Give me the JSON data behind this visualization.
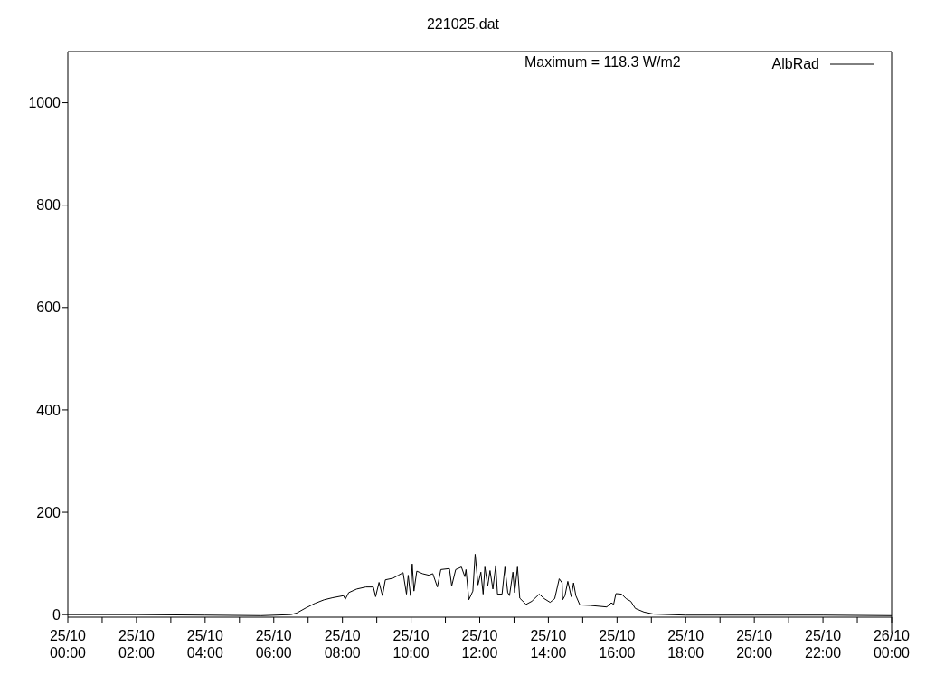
{
  "chart_data": {
    "type": "line",
    "title": "221025.dat",
    "annotations": [
      "Maximum = 118.3 W/m2"
    ],
    "x": [
      "--10-25T00:00",
      "--10-25T02:00",
      "--10-25T04:00",
      "--10-25T05:38",
      "--10-25T06:30",
      "--10-25T06:40",
      "--10-25T06:56",
      "--10-25T07:12",
      "--10-25T07:28",
      "--10-25T07:43",
      "--10-25T08:02",
      "--10-25T08:05",
      "--10-25T08:11",
      "--10-25T08:25",
      "--10-25T08:41",
      "--10-25T08:54",
      "--10-25T08:58",
      "--10-25T09:04",
      "--10-25T09:10",
      "--10-25T09:15",
      "--10-25T09:28",
      "--10-25T09:38",
      "--10-25T09:46",
      "--10-25T09:52",
      "--10-25T09:55",
      "--10-25T09:59",
      "--10-25T10:02",
      "--10-25T10:05",
      "--10-25T10:10",
      "--10-25T10:20",
      "--10-25T10:31",
      "--10-25T10:38",
      "--10-25T10:46",
      "--10-25T10:52",
      "--10-25T11:07",
      "--10-25T11:11",
      "--10-25T11:18",
      "--10-25T11:28",
      "--10-25T11:34",
      "--10-25T11:36",
      "--10-25T11:41",
      "--10-25T11:48",
      "--10-25T11:52",
      "--10-25T11:57",
      "--10-25T12:02",
      "--10-25T12:06",
      "--10-25T12:09",
      "--10-25T12:14",
      "--10-25T12:18",
      "--10-25T12:23",
      "--10-25T12:28",
      "--10-25T12:31",
      "--10-25T12:39",
      "--10-25T12:44",
      "--10-25T12:49",
      "--10-25T12:52",
      "--10-25T12:58",
      "--10-25T13:01",
      "--10-25T13:06",
      "--10-25T13:10",
      "--10-25T13:21",
      "--10-25T13:31",
      "--10-25T13:44",
      "--10-25T13:53",
      "--10-25T14:03",
      "--10-25T14:11",
      "--10-25T14:19",
      "--10-25T14:24",
      "--10-25T14:25",
      "--10-25T14:29",
      "--10-25T14:34",
      "--10-25T14:40",
      "--10-25T14:44",
      "--10-25T14:48",
      "--10-25T14:55",
      "--10-25T15:13",
      "--10-25T15:42",
      "--10-25T15:50",
      "--10-25T15:54",
      "--10-25T15:58",
      "--10-25T16:08",
      "--10-25T16:16",
      "--10-25T16:24",
      "--10-25T16:32",
      "--10-25T16:47",
      "--10-25T17:04",
      "--10-25T18:00",
      "--10-25T20:00",
      "--10-25T22:00",
      "--10-26T00:00"
    ],
    "series": [
      {
        "name": "AlbRad",
        "color": "#000000",
        "values": [
          0,
          0,
          -1,
          -2,
          0,
          3,
          13,
          22,
          29,
          33,
          37,
          30,
          43,
          50,
          54,
          54,
          35,
          63,
          37,
          68,
          71,
          77,
          82,
          40,
          77,
          37,
          99,
          46,
          85,
          80,
          77,
          80,
          54,
          88,
          90,
          56,
          88,
          93,
          74,
          88,
          29,
          46,
          118,
          58,
          83,
          40,
          93,
          56,
          86,
          50,
          96,
          40,
          40,
          93,
          43,
          37,
          83,
          43,
          93,
          32,
          20,
          26,
          40,
          31,
          24,
          31,
          70,
          62,
          29,
          37,
          65,
          35,
          62,
          37,
          19,
          18,
          15,
          23,
          20,
          41,
          40,
          31,
          26,
          12,
          5,
          1,
          -1,
          -1,
          -1,
          -2
        ]
      }
    ],
    "xlim": [
      "--10-25T00:00",
      "--10-26T00:00"
    ],
    "xticks": [
      {
        "value": "--10-25T00:00",
        "label": "25/10\n00:00"
      },
      {
        "value": "--10-25T01:00",
        "label": null
      },
      {
        "value": "--10-25T02:00",
        "label": "25/10\n02:00"
      },
      {
        "value": "--10-25T03:00",
        "label": null
      },
      {
        "value": "--10-25T04:00",
        "label": "25/10\n04:00"
      },
      {
        "value": "--10-25T05:00",
        "label": null
      },
      {
        "value": "--10-25T06:00",
        "label": "25/10\n06:00"
      },
      {
        "value": "--10-25T07:00",
        "label": null
      },
      {
        "value": "--10-25T08:00",
        "label": "25/10\n08:00"
      },
      {
        "value": "--10-25T09:00",
        "label": null
      },
      {
        "value": "--10-25T10:00",
        "label": "25/10\n10:00"
      },
      {
        "value": "--10-25T11:00",
        "label": null
      },
      {
        "value": "--10-25T12:00",
        "label": "25/10\n12:00"
      },
      {
        "value": "--10-25T13:00",
        "label": null
      },
      {
        "value": "--10-25T14:00",
        "label": "25/10\n14:00"
      },
      {
        "value": "--10-25T15:00",
        "label": null
      },
      {
        "value": "--10-25T16:00",
        "label": "25/10\n16:00"
      },
      {
        "value": "--10-25T17:00",
        "label": null
      },
      {
        "value": "--10-25T18:00",
        "label": "25/10\n18:00"
      },
      {
        "value": "--10-25T19:00",
        "label": null
      },
      {
        "value": "--10-25T20:00",
        "label": "25/10\n20:00"
      },
      {
        "value": "--10-25T21:00",
        "label": null
      },
      {
        "value": "--10-25T22:00",
        "label": "25/10\n22:00"
      },
      {
        "value": "--10-25T23:00",
        "label": null
      },
      {
        "value": "--10-26T00:00",
        "label": "26/10\n00:00"
      }
    ],
    "ylim": [
      -5,
      1100
    ],
    "yticks": [
      0,
      200,
      400,
      600,
      800,
      1000
    ],
    "grid": false,
    "legend": "top right",
    "marker": "none",
    "line_style": "solid"
  }
}
